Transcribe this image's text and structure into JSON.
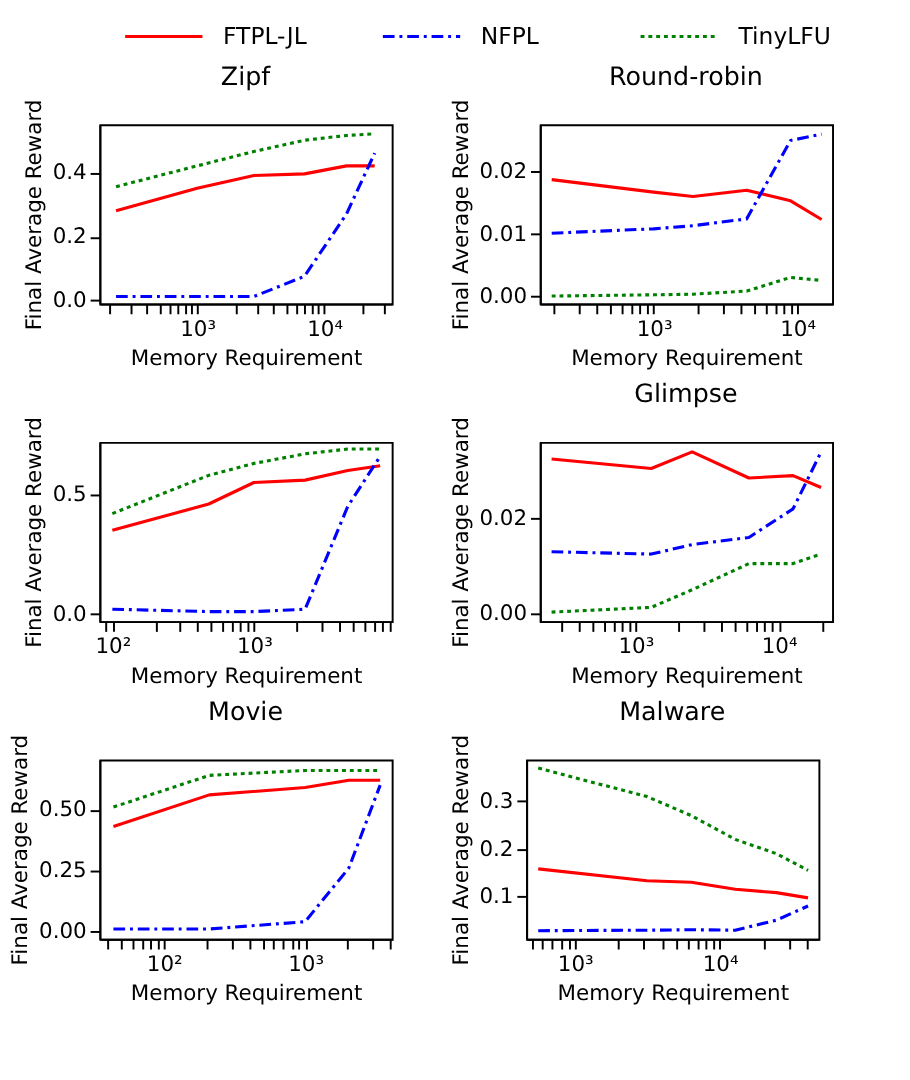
{
  "chart_data": [
    {
      "type": "line",
      "title": "Zipf",
      "xlabel": "Memory Requirement",
      "ylabel": "Final Average Reward",
      "log": "x",
      "legend": "top",
      "x": [
        230,
        1000,
        2800,
        7000,
        15000,
        25000
      ],
      "xlim": [
        170,
        34000
      ],
      "xticks": [
        {
          "value": 200,
          "label": null
        },
        {
          "value": 300,
          "label": null
        },
        {
          "value": 400,
          "label": null
        },
        {
          "value": 500,
          "label": null
        },
        {
          "value": 600,
          "label": null
        },
        {
          "value": 700,
          "label": null
        },
        {
          "value": 800,
          "label": null
        },
        {
          "value": 900,
          "label": null
        },
        {
          "value": 1000,
          "label": "10³"
        },
        {
          "value": 2000,
          "label": null
        },
        {
          "value": 3000,
          "label": null
        },
        {
          "value": 4000,
          "label": null
        },
        {
          "value": 5000,
          "label": null
        },
        {
          "value": 6000,
          "label": null
        },
        {
          "value": 7000,
          "label": null
        },
        {
          "value": 8000,
          "label": null
        },
        {
          "value": 9000,
          "label": null
        },
        {
          "value": 10000,
          "label": "10⁴"
        },
        {
          "value": 20000,
          "label": null
        },
        {
          "value": 30000,
          "label": null
        }
      ],
      "ylim": [
        -0.01,
        0.55
      ],
      "yticks": [
        {
          "value": 0,
          "label": "0.0"
        },
        {
          "value": 0.2,
          "label": "0.2"
        },
        {
          "value": 0.4,
          "label": "0.4"
        }
      ],
      "series": [
        {
          "name": "FTPL-JL",
          "color": "#ff0000",
          "line_style": "solid",
          "values": [
            0.28,
            0.35,
            0.39,
            0.395,
            0.42,
            0.42
          ]
        },
        {
          "name": "NFPL",
          "color": "#0000ff",
          "line_style": "dashdot",
          "values": [
            0.012,
            0.012,
            0.012,
            0.075,
            0.27,
            0.46
          ]
        },
        {
          "name": "TinyLFU",
          "color": "#008000",
          "line_style": "dotted",
          "values": [
            0.355,
            0.42,
            0.465,
            0.5,
            0.515,
            0.52
          ]
        }
      ]
    },
    {
      "type": "line",
      "title": "Round-robin",
      "xlabel": "Memory Requirement",
      "ylabel": "Final Average Reward",
      "log": "x",
      "x": [
        195,
        1000,
        1880,
        4450,
        9000,
        14800
      ],
      "xlim": [
        161,
        17500
      ],
      "xticks": [
        {
          "value": 200,
          "label": null
        },
        {
          "value": 300,
          "label": null
        },
        {
          "value": 400,
          "label": null
        },
        {
          "value": 500,
          "label": null
        },
        {
          "value": 600,
          "label": null
        },
        {
          "value": 700,
          "label": null
        },
        {
          "value": 800,
          "label": null
        },
        {
          "value": 900,
          "label": null
        },
        {
          "value": 1000,
          "label": "10³"
        },
        {
          "value": 2000,
          "label": null
        },
        {
          "value": 3000,
          "label": null
        },
        {
          "value": 4000,
          "label": null
        },
        {
          "value": 5000,
          "label": null
        },
        {
          "value": 6000,
          "label": null
        },
        {
          "value": 7000,
          "label": null
        },
        {
          "value": 8000,
          "label": null
        },
        {
          "value": 9000,
          "label": null
        },
        {
          "value": 10000,
          "label": "10⁴"
        }
      ],
      "ylim": [
        -0.0012,
        0.0276
      ],
      "yticks": [
        {
          "value": 0,
          "label": "0.00"
        },
        {
          "value": 0.01,
          "label": "0.01"
        },
        {
          "value": 0.02,
          "label": "0.02"
        }
      ],
      "series": [
        {
          "color": "#ff0000",
          "line_style": "solid",
          "values": [
            0.0187,
            0.0167,
            0.016,
            0.017,
            0.0153,
            0.0123
          ]
        },
        {
          "color": "#0000ff",
          "line_style": "dashdot",
          "values": [
            0.0101,
            0.0108,
            0.0113,
            0.0124,
            0.025,
            0.026
          ]
        },
        {
          "color": "#008000",
          "line_style": "dotted",
          "values": [
            0.0,
            0.0002,
            0.0003,
            0.0008,
            0.003,
            0.0025
          ]
        }
      ]
    },
    {
      "type": "line",
      "xlabel": "Memory Requirement",
      "ylabel": "Final Average Reward",
      "log": "x",
      "x": [
        100,
        480,
        1000,
        2300,
        4600,
        7800
      ],
      "xlim": [
        81,
        9400
      ],
      "xticks": [
        {
          "value": 90,
          "label": null
        },
        {
          "value": 100,
          "label": "10²"
        },
        {
          "value": 200,
          "label": null
        },
        {
          "value": 300,
          "label": null
        },
        {
          "value": 400,
          "label": null
        },
        {
          "value": 500,
          "label": null
        },
        {
          "value": 600,
          "label": null
        },
        {
          "value": 700,
          "label": null
        },
        {
          "value": 800,
          "label": null
        },
        {
          "value": 900,
          "label": null
        },
        {
          "value": 1000,
          "label": "10³"
        },
        {
          "value": 2000,
          "label": null
        },
        {
          "value": 3000,
          "label": null
        },
        {
          "value": 4000,
          "label": null
        },
        {
          "value": 5000,
          "label": null
        },
        {
          "value": 6000,
          "label": null
        },
        {
          "value": 7000,
          "label": null
        },
        {
          "value": 8000,
          "label": null
        },
        {
          "value": 9000,
          "label": null
        }
      ],
      "ylim": [
        -0.03,
        0.72
      ],
      "yticks": [
        {
          "value": 0,
          "label": "0.0"
        },
        {
          "value": 0.5,
          "label": "0.5"
        }
      ],
      "series": [
        {
          "color": "#ff0000",
          "line_style": "solid",
          "values": [
            0.35,
            0.46,
            0.55,
            0.56,
            0.6,
            0.62
          ]
        },
        {
          "color": "#0000ff",
          "line_style": "dashdot",
          "values": [
            0.02,
            0.01,
            0.01,
            0.02,
            0.45,
            0.66
          ]
        },
        {
          "color": "#008000",
          "line_style": "dotted",
          "values": [
            0.42,
            0.58,
            0.63,
            0.67,
            0.69,
            0.69
          ]
        }
      ]
    },
    {
      "type": "line",
      "title": "Glimpse",
      "xlabel": "Memory Requirement",
      "ylabel": "Final Average Reward",
      "log": "x",
      "x": [
        260,
        1290,
        2490,
        6200,
        12600,
        19800
      ],
      "xlim": [
        215,
        23600
      ],
      "xticks": [
        {
          "value": 300,
          "label": null
        },
        {
          "value": 400,
          "label": null
        },
        {
          "value": 500,
          "label": null
        },
        {
          "value": 600,
          "label": null
        },
        {
          "value": 700,
          "label": null
        },
        {
          "value": 800,
          "label": null
        },
        {
          "value": 900,
          "label": null
        },
        {
          "value": 1000,
          "label": "10³"
        },
        {
          "value": 2000,
          "label": null
        },
        {
          "value": 3000,
          "label": null
        },
        {
          "value": 4000,
          "label": null
        },
        {
          "value": 5000,
          "label": null
        },
        {
          "value": 6000,
          "label": null
        },
        {
          "value": 7000,
          "label": null
        },
        {
          "value": 8000,
          "label": null
        },
        {
          "value": 9000,
          "label": null
        },
        {
          "value": 10000,
          "label": "10⁴"
        },
        {
          "value": 20000,
          "label": null
        }
      ],
      "ylim": [
        -0.0016,
        0.0361
      ],
      "yticks": [
        {
          "value": 0,
          "label": "0.00"
        },
        {
          "value": 0.02,
          "label": "0.02"
        }
      ],
      "series": [
        {
          "color": "#ff0000",
          "line_style": "solid",
          "values": [
            0.0325,
            0.0305,
            0.034,
            0.0285,
            0.029,
            0.0265
          ]
        },
        {
          "color": "#0000ff",
          "line_style": "dashdot",
          "values": [
            0.013,
            0.0125,
            0.0145,
            0.016,
            0.022,
            0.034
          ]
        },
        {
          "color": "#008000",
          "line_style": "dotted",
          "values": [
            0.0003,
            0.0013,
            0.005,
            0.0105,
            0.0105,
            0.0125
          ]
        }
      ]
    },
    {
      "type": "line",
      "title": "Movie",
      "xlabel": "Memory Requirement",
      "ylabel": "Final Average Reward",
      "log": "x",
      "x": [
        44,
        210,
        1000,
        2040,
        3400
      ],
      "xlim": [
        35,
        4100
      ],
      "xticks": [
        {
          "value": 40,
          "label": null
        },
        {
          "value": 50,
          "label": null
        },
        {
          "value": 60,
          "label": null
        },
        {
          "value": 70,
          "label": null
        },
        {
          "value": 80,
          "label": null
        },
        {
          "value": 90,
          "label": null
        },
        {
          "value": 100,
          "label": "10²"
        },
        {
          "value": 200,
          "label": null
        },
        {
          "value": 300,
          "label": null
        },
        {
          "value": 400,
          "label": null
        },
        {
          "value": 500,
          "label": null
        },
        {
          "value": 600,
          "label": null
        },
        {
          "value": 700,
          "label": null
        },
        {
          "value": 800,
          "label": null
        },
        {
          "value": 900,
          "label": null
        },
        {
          "value": 1000,
          "label": "10³"
        },
        {
          "value": 2000,
          "label": null
        },
        {
          "value": 3000,
          "label": null
        },
        {
          "value": 4000,
          "label": null
        }
      ],
      "ylim": [
        -0.03,
        0.705
      ],
      "yticks": [
        {
          "value": 0,
          "label": "0.00"
        },
        {
          "value": 0.25,
          "label": "0.25"
        },
        {
          "value": 0.5,
          "label": "0.50"
        }
      ],
      "series": [
        {
          "color": "#ff0000",
          "line_style": "solid",
          "values": [
            0.43,
            0.56,
            0.59,
            0.62,
            0.62
          ]
        },
        {
          "color": "#0000ff",
          "line_style": "dashdot",
          "values": [
            0.01,
            0.01,
            0.04,
            0.26,
            0.6
          ]
        },
        {
          "color": "#008000",
          "line_style": "dotted",
          "values": [
            0.51,
            0.64,
            0.66,
            0.66,
            0.66
          ]
        }
      ]
    },
    {
      "type": "line",
      "title": "Malware",
      "xlabel": "Memory Requirement",
      "ylabel": "Final Average Reward",
      "log": "x",
      "x": [
        560,
        3150,
        6370,
        12800,
        24600,
        40700
      ],
      "xlim": [
        462,
        48000
      ],
      "xticks": [
        {
          "value": 500,
          "label": null
        },
        {
          "value": 600,
          "label": null
        },
        {
          "value": 700,
          "label": null
        },
        {
          "value": 800,
          "label": null
        },
        {
          "value": 900,
          "label": null
        },
        {
          "value": 1000,
          "label": "10³"
        },
        {
          "value": 2000,
          "label": null
        },
        {
          "value": 3000,
          "label": null
        },
        {
          "value": 4000,
          "label": null
        },
        {
          "value": 5000,
          "label": null
        },
        {
          "value": 6000,
          "label": null
        },
        {
          "value": 7000,
          "label": null
        },
        {
          "value": 8000,
          "label": null
        },
        {
          "value": 9000,
          "label": null
        },
        {
          "value": 10000,
          "label": "10⁴"
        },
        {
          "value": 20000,
          "label": null
        },
        {
          "value": 30000,
          "label": null
        },
        {
          "value": 40000,
          "label": null
        }
      ],
      "ylim": [
        0.011,
        0.388
      ],
      "yticks": [
        0.1,
        0.2,
        0.3
      ],
      "series": [
        {
          "color": "#ff0000",
          "line_style": "solid",
          "values": [
            0.158,
            0.133,
            0.13,
            0.115,
            0.108,
            0.097
          ]
        },
        {
          "color": "#0000ff",
          "line_style": "dashdot",
          "values": [
            0.028,
            0.029,
            0.03,
            0.029,
            0.05,
            0.08
          ]
        },
        {
          "color": "#008000",
          "line_style": "dotted",
          "values": [
            0.37,
            0.31,
            0.27,
            0.22,
            0.19,
            0.155
          ]
        }
      ]
    }
  ]
}
